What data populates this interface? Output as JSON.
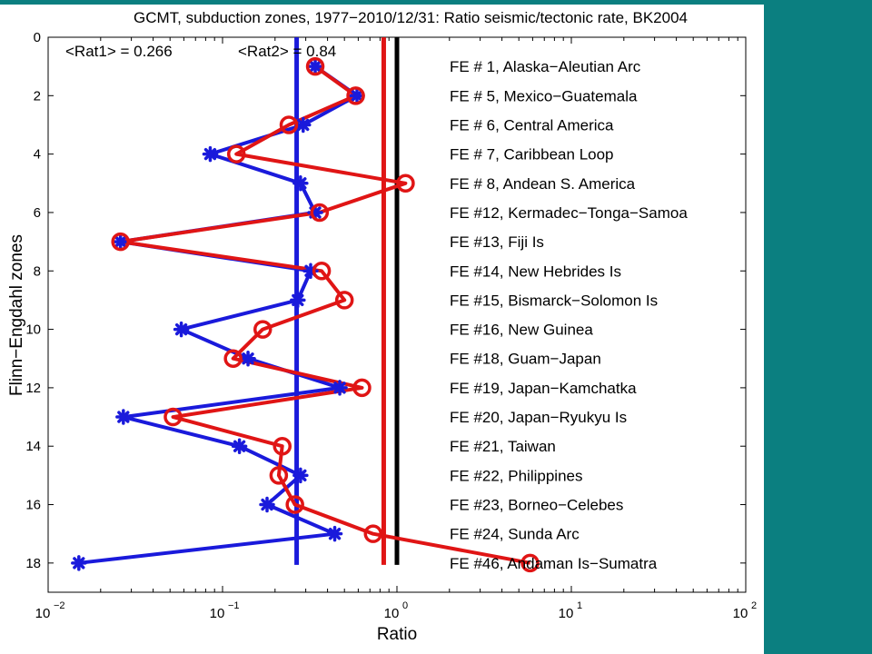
{
  "colors": {
    "background": "#ffffff",
    "panel": "#0b7f80",
    "series1": "#1a1adb",
    "series2": "#e01515",
    "reference": "#000000"
  },
  "chart_data": {
    "type": "line",
    "title": "GCMT, subduction zones, 1977−2010/12/31: Ratio seismic/tectonic rate, BK2004",
    "xlabel": "Ratio",
    "ylabel": "Flinn−Engdahl zones",
    "xscale": "log",
    "xlim": [
      0.01,
      100
    ],
    "ylim": [
      0,
      19
    ],
    "y_reversed": true,
    "x_ticks": [
      {
        "base": "10",
        "exp": "−2",
        "value": 0.01
      },
      {
        "base": "10",
        "exp": "−1",
        "value": 0.1
      },
      {
        "base": "10",
        "exp": "0",
        "value": 1
      },
      {
        "base": "10",
        "exp": "1",
        "value": 10
      },
      {
        "base": "10",
        "exp": "2",
        "value": 100
      }
    ],
    "y_ticks": [
      "0",
      "2",
      "4",
      "6",
      "8",
      "10",
      "12",
      "14",
      "16",
      "18"
    ],
    "annotations": [
      "<Rat1> = 0.266",
      "<Rat2> = 0.84"
    ],
    "reference_lines": [
      {
        "x": 0.266,
        "color": "#1a1adb"
      },
      {
        "x": 0.84,
        "color": "#e01515"
      },
      {
        "x": 1.0,
        "color": "#000000"
      }
    ],
    "zone_labels": [
      {
        "y": 1,
        "label": "FE # 1, Alaska−Aleutian Arc"
      },
      {
        "y": 2,
        "label": "FE # 5, Mexico−Guatemala"
      },
      {
        "y": 3,
        "label": "FE # 6, Central America"
      },
      {
        "y": 4,
        "label": "FE # 7, Caribbean Loop"
      },
      {
        "y": 5,
        "label": "FE # 8, Andean S. America"
      },
      {
        "y": 6,
        "label": "FE #12, Kermadec−Tonga−Samoa"
      },
      {
        "y": 7,
        "label": "FE #13, Fiji Is"
      },
      {
        "y": 8,
        "label": "FE #14, New Hebrides Is"
      },
      {
        "y": 9,
        "label": "FE #15, Bismarck−Solomon Is"
      },
      {
        "y": 10,
        "label": "FE #16, New Guinea"
      },
      {
        "y": 11,
        "label": "FE #18, Guam−Japan"
      },
      {
        "y": 12,
        "label": "FE #19, Japan−Kamchatka"
      },
      {
        "y": 13,
        "label": "FE #20, Japan−Ryukyu Is"
      },
      {
        "y": 14,
        "label": "FE #21, Taiwan"
      },
      {
        "y": 15,
        "label": "FE #22, Philippines"
      },
      {
        "y": 16,
        "label": "FE #23, Borneo−Celebes"
      },
      {
        "y": 17,
        "label": "FE #24, Sunda Arc"
      },
      {
        "y": 18,
        "label": "FE #46, Andaman Is−Sumatra"
      }
    ],
    "series": [
      {
        "marker": "star",
        "color": "#1a1adb",
        "y": [
          1,
          2,
          3,
          4,
          5,
          6,
          7,
          8,
          9,
          10,
          11,
          12,
          13,
          14,
          15,
          16,
          17,
          18
        ],
        "values": [
          0.34,
          0.59,
          0.29,
          0.085,
          0.28,
          0.34,
          0.026,
          0.32,
          0.27,
          0.058,
          0.14,
          0.47,
          0.027,
          0.125,
          0.28,
          0.18,
          0.44,
          0.015
        ]
      },
      {
        "marker": "circle",
        "color": "#e01515",
        "y": [
          1,
          2,
          3,
          4,
          5,
          6,
          7,
          8,
          9,
          10,
          11,
          12,
          13,
          14,
          15,
          16,
          17,
          18
        ],
        "values": [
          0.34,
          0.58,
          0.24,
          0.12,
          1.12,
          0.36,
          0.026,
          0.37,
          0.5,
          0.17,
          0.115,
          0.63,
          0.052,
          0.22,
          0.21,
          0.26,
          0.73,
          5.8
        ]
      }
    ]
  }
}
